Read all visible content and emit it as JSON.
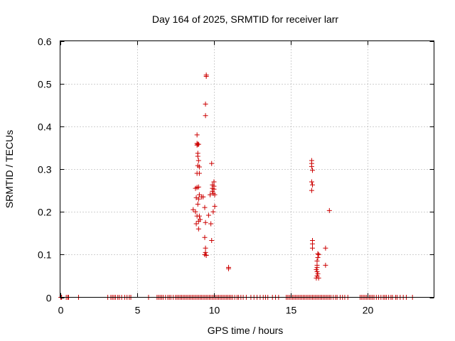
{
  "chart_data": {
    "type": "scatter",
    "title": "Day 164 of 2025, SRMTID for receiver larr",
    "xlabel": "GPS time / hours",
    "ylabel": "SRMTID / TECUs",
    "xlim": [
      0,
      24.3
    ],
    "ylim": [
      0,
      0.6
    ],
    "x_ticks": [
      0,
      5,
      10,
      15,
      20
    ],
    "x_tick_labels": [
      "0",
      "5",
      "10",
      "15",
      "20"
    ],
    "y_ticks": [
      0,
      0.1,
      0.2,
      0.3,
      0.4,
      0.5,
      0.6
    ],
    "y_tick_labels": [
      "0",
      "0.1",
      "0.2",
      "0.3",
      "0.4",
      "0.5",
      "0.6"
    ],
    "grid": true,
    "marker": "+",
    "series": [
      {
        "name": "SRMTID",
        "color": "#cc0000",
        "points": [
          [
            9.5,
            0.52
          ],
          [
            9.5,
            0.517
          ],
          [
            9.45,
            0.452
          ],
          [
            9.45,
            0.425
          ],
          [
            8.9,
            0.38
          ],
          [
            8.9,
            0.36
          ],
          [
            8.95,
            0.358
          ],
          [
            8.9,
            0.356
          ],
          [
            9.0,
            0.358
          ],
          [
            8.95,
            0.337
          ],
          [
            8.95,
            0.33
          ],
          [
            9.0,
            0.32
          ],
          [
            8.95,
            0.308
          ],
          [
            9.05,
            0.305
          ],
          [
            8.9,
            0.29
          ],
          [
            9.05,
            0.29
          ],
          [
            8.8,
            0.255
          ],
          [
            8.9,
            0.257
          ],
          [
            9.0,
            0.258
          ],
          [
            9.05,
            0.24
          ],
          [
            9.0,
            0.23
          ],
          [
            8.85,
            0.233
          ],
          [
            8.65,
            0.205
          ],
          [
            8.8,
            0.2
          ],
          [
            8.9,
            0.19
          ],
          [
            8.95,
            0.218
          ],
          [
            9.05,
            0.19
          ],
          [
            8.85,
            0.172
          ],
          [
            9.0,
            0.178
          ],
          [
            9.1,
            0.182
          ],
          [
            9.0,
            0.16
          ],
          [
            9.3,
            0.235
          ],
          [
            9.2,
            0.235
          ],
          [
            9.4,
            0.21
          ],
          [
            9.45,
            0.175
          ],
          [
            9.65,
            0.192
          ],
          [
            9.75,
            0.24
          ],
          [
            9.8,
            0.172
          ],
          [
            9.85,
            0.313
          ],
          [
            9.9,
            0.263
          ],
          [
            9.9,
            0.255
          ],
          [
            9.9,
            0.248
          ],
          [
            9.95,
            0.243
          ],
          [
            10.0,
            0.27
          ],
          [
            10.0,
            0.26
          ],
          [
            10.0,
            0.253
          ],
          [
            10.05,
            0.24
          ],
          [
            10.05,
            0.213
          ],
          [
            9.95,
            0.2
          ],
          [
            9.85,
            0.133
          ],
          [
            9.4,
            0.14
          ],
          [
            9.45,
            0.115
          ],
          [
            9.45,
            0.105
          ],
          [
            9.4,
            0.1
          ],
          [
            9.5,
            0.098
          ],
          [
            10.95,
            0.07
          ],
          [
            10.95,
            0.067
          ],
          [
            16.35,
            0.32
          ],
          [
            16.35,
            0.313
          ],
          [
            16.35,
            0.306
          ],
          [
            16.4,
            0.297
          ],
          [
            16.35,
            0.27
          ],
          [
            16.4,
            0.263
          ],
          [
            16.35,
            0.25
          ],
          [
            16.4,
            0.133
          ],
          [
            16.4,
            0.125
          ],
          [
            16.4,
            0.115
          ],
          [
            16.75,
            0.102
          ],
          [
            16.8,
            0.1
          ],
          [
            16.75,
            0.093
          ],
          [
            16.7,
            0.085
          ],
          [
            16.7,
            0.075
          ],
          [
            16.7,
            0.07
          ],
          [
            16.65,
            0.065
          ],
          [
            16.7,
            0.06
          ],
          [
            16.75,
            0.055
          ],
          [
            16.7,
            0.05
          ],
          [
            16.65,
            0.045
          ],
          [
            16.8,
            0.045
          ],
          [
            17.25,
            0.115
          ],
          [
            17.25,
            0.075
          ],
          [
            17.5,
            0.203
          ],
          [
            0.05,
            0
          ],
          [
            0.1,
            0
          ],
          [
            0.4,
            0
          ],
          [
            0.5,
            0
          ],
          [
            0.55,
            0
          ],
          [
            1.2,
            0
          ],
          [
            3.1,
            0
          ],
          [
            3.3,
            0
          ],
          [
            3.4,
            0
          ],
          [
            3.5,
            0
          ],
          [
            3.6,
            0
          ],
          [
            3.75,
            0
          ],
          [
            3.85,
            0
          ],
          [
            4.0,
            0
          ],
          [
            4.2,
            0
          ],
          [
            4.35,
            0
          ],
          [
            4.5,
            0
          ],
          [
            4.6,
            0
          ],
          [
            5.75,
            0
          ],
          [
            6.3,
            0
          ],
          [
            6.4,
            0
          ],
          [
            6.5,
            0
          ],
          [
            6.6,
            0
          ],
          [
            6.7,
            0
          ],
          [
            6.85,
            0
          ],
          [
            7.0,
            0
          ],
          [
            7.1,
            0
          ],
          [
            7.2,
            0
          ],
          [
            7.35,
            0
          ],
          [
            7.5,
            0
          ],
          [
            7.6,
            0
          ],
          [
            7.7,
            0
          ],
          [
            7.8,
            0
          ],
          [
            7.9,
            0
          ],
          [
            8.0,
            0
          ],
          [
            8.1,
            0
          ],
          [
            8.2,
            0
          ],
          [
            8.3,
            0
          ],
          [
            8.4,
            0
          ],
          [
            8.5,
            0
          ],
          [
            8.6,
            0
          ],
          [
            8.7,
            0
          ],
          [
            8.8,
            0
          ],
          [
            8.9,
            0
          ],
          [
            9.0,
            0
          ],
          [
            9.1,
            0
          ],
          [
            9.2,
            0
          ],
          [
            9.3,
            0
          ],
          [
            9.4,
            0
          ],
          [
            9.5,
            0
          ],
          [
            9.6,
            0
          ],
          [
            9.7,
            0
          ],
          [
            9.8,
            0
          ],
          [
            9.9,
            0
          ],
          [
            10.0,
            0
          ],
          [
            10.1,
            0
          ],
          [
            10.2,
            0
          ],
          [
            10.3,
            0
          ],
          [
            10.4,
            0
          ],
          [
            10.5,
            0
          ],
          [
            10.6,
            0
          ],
          [
            10.7,
            0
          ],
          [
            10.8,
            0
          ],
          [
            10.9,
            0
          ],
          [
            11.0,
            0
          ],
          [
            11.1,
            0
          ],
          [
            11.2,
            0
          ],
          [
            11.35,
            0
          ],
          [
            11.5,
            0
          ],
          [
            11.6,
            0
          ],
          [
            11.75,
            0
          ],
          [
            11.9,
            0
          ],
          [
            12.1,
            0
          ],
          [
            12.4,
            0
          ],
          [
            12.6,
            0
          ],
          [
            12.8,
            0
          ],
          [
            13.0,
            0
          ],
          [
            13.2,
            0
          ],
          [
            13.35,
            0
          ],
          [
            13.5,
            0
          ],
          [
            13.8,
            0
          ],
          [
            14.0,
            0
          ],
          [
            14.2,
            0
          ],
          [
            14.7,
            0
          ],
          [
            14.8,
            0
          ],
          [
            14.9,
            0
          ],
          [
            15.0,
            0
          ],
          [
            15.1,
            0
          ],
          [
            15.2,
            0
          ],
          [
            15.3,
            0
          ],
          [
            15.4,
            0
          ],
          [
            15.5,
            0
          ],
          [
            15.6,
            0
          ],
          [
            15.7,
            0
          ],
          [
            15.8,
            0
          ],
          [
            15.9,
            0
          ],
          [
            16.0,
            0
          ],
          [
            16.1,
            0
          ],
          [
            16.2,
            0
          ],
          [
            16.3,
            0
          ],
          [
            16.4,
            0
          ],
          [
            16.5,
            0
          ],
          [
            16.6,
            0
          ],
          [
            16.7,
            0
          ],
          [
            16.8,
            0
          ],
          [
            16.9,
            0
          ],
          [
            17.0,
            0
          ],
          [
            17.1,
            0
          ],
          [
            17.2,
            0
          ],
          [
            17.3,
            0
          ],
          [
            17.4,
            0
          ],
          [
            17.5,
            0
          ],
          [
            17.6,
            0
          ],
          [
            17.75,
            0
          ],
          [
            17.9,
            0
          ],
          [
            18.0,
            0
          ],
          [
            18.2,
            0
          ],
          [
            18.35,
            0
          ],
          [
            18.5,
            0
          ],
          [
            18.7,
            0
          ],
          [
            19.5,
            0
          ],
          [
            19.6,
            0
          ],
          [
            19.7,
            0
          ],
          [
            19.8,
            0
          ],
          [
            19.9,
            0
          ],
          [
            20.0,
            0
          ],
          [
            20.1,
            0
          ],
          [
            20.2,
            0
          ],
          [
            20.3,
            0
          ],
          [
            20.4,
            0
          ],
          [
            20.55,
            0
          ],
          [
            20.7,
            0
          ],
          [
            20.85,
            0
          ],
          [
            21.0,
            0
          ],
          [
            21.1,
            0
          ],
          [
            21.2,
            0
          ],
          [
            21.35,
            0
          ],
          [
            21.5,
            0
          ],
          [
            21.6,
            0
          ],
          [
            21.8,
            0
          ],
          [
            21.9,
            0
          ],
          [
            22.1,
            0
          ],
          [
            22.3,
            0
          ],
          [
            22.5,
            0
          ],
          [
            22.9,
            0
          ]
        ]
      }
    ]
  }
}
